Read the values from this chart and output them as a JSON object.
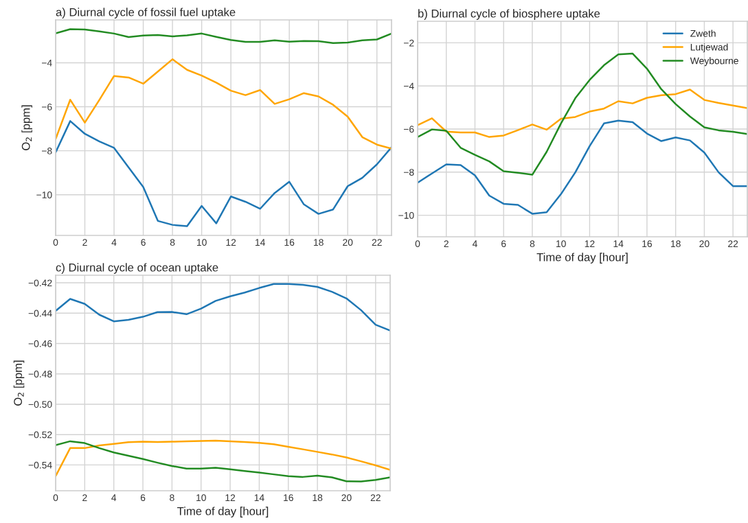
{
  "chart_data": [
    {
      "type": "line",
      "title": "a) Diurnal cycle of fossil fuel uptake",
      "ylabel": "O$_{2}$ [ppm]",
      "x": [
        0,
        1,
        2,
        3,
        4,
        5,
        6,
        7,
        8,
        9,
        10,
        11,
        12,
        13,
        14,
        15,
        16,
        17,
        18,
        19,
        20,
        21,
        22,
        23
      ],
      "xlim": [
        0,
        23
      ],
      "xticks": [
        0,
        2,
        4,
        6,
        8,
        10,
        12,
        14,
        16,
        18,
        20,
        22
      ],
      "ylim": [
        -11.85,
        -2.05
      ],
      "yticks": [
        {
          "value": -10,
          "label": "−10"
        },
        {
          "value": -8,
          "label": "−8"
        },
        {
          "value": -6,
          "label": "−6"
        },
        {
          "value": -4,
          "label": "−4"
        }
      ],
      "grid": true,
      "legend": false,
      "series": [
        {
          "color": "#1f77b4",
          "values": [
            -8.07,
            -6.65,
            -7.23,
            -7.58,
            -7.87,
            -8.76,
            -9.65,
            -11.19,
            -11.37,
            -11.43,
            -10.51,
            -11.3,
            -10.08,
            -10.32,
            -10.64,
            -9.92,
            -9.41,
            -10.44,
            -10.87,
            -10.67,
            -9.61,
            -9.23,
            -8.62,
            -7.84
          ]
        },
        {
          "color": "#ffa500",
          "values": [
            -7.47,
            -5.68,
            -6.72,
            -5.68,
            -4.6,
            -4.67,
            -4.95,
            -4.4,
            -3.84,
            -4.32,
            -4.58,
            -4.9,
            -5.27,
            -5.47,
            -5.24,
            -5.87,
            -5.66,
            -5.38,
            -5.53,
            -5.91,
            -6.45,
            -7.38,
            -7.72,
            -7.9
          ]
        },
        {
          "color": "#228b22",
          "values": [
            -2.66,
            -2.47,
            -2.49,
            -2.57,
            -2.67,
            -2.83,
            -2.76,
            -2.74,
            -2.8,
            -2.75,
            -2.67,
            -2.82,
            -2.96,
            -3.05,
            -3.05,
            -2.98,
            -3.04,
            -3.01,
            -3.02,
            -3.1,
            -3.08,
            -2.98,
            -2.94,
            -2.67
          ]
        }
      ]
    },
    {
      "type": "line",
      "title": "b) Diurnal cycle of biosphere uptake",
      "xlabel": "Time of day [hour]",
      "x": [
        0,
        1,
        2,
        3,
        4,
        5,
        6,
        7,
        8,
        9,
        10,
        11,
        12,
        13,
        14,
        15,
        16,
        17,
        18,
        19,
        20,
        21,
        22,
        23
      ],
      "xlim": [
        0,
        23
      ],
      "xticks": [
        0,
        2,
        4,
        6,
        8,
        10,
        12,
        14,
        16,
        18,
        20,
        22
      ],
      "ylim": [
        -11,
        -1
      ],
      "yticks": [
        {
          "value": -10,
          "label": "−10"
        },
        {
          "value": -8,
          "label": "−8"
        },
        {
          "value": -6,
          "label": "−6"
        },
        {
          "value": -4,
          "label": "−4"
        },
        {
          "value": -2,
          "label": "−2"
        }
      ],
      "grid": true,
      "legend": "top right",
      "series": [
        {
          "name": "Zweth",
          "color": "#1f77b4",
          "values": [
            -8.49,
            -8.06,
            -7.64,
            -7.67,
            -8.15,
            -9.09,
            -9.47,
            -9.52,
            -9.93,
            -9.86,
            -9.02,
            -8.01,
            -6.79,
            -5.74,
            -5.61,
            -5.68,
            -6.21,
            -6.56,
            -6.39,
            -6.53,
            -7.09,
            -8.01,
            -8.65,
            -8.65
          ]
        },
        {
          "name": "Lutjewad",
          "color": "#ffa500",
          "values": [
            -5.82,
            -5.5,
            -6.12,
            -6.16,
            -6.16,
            -6.37,
            -6.3,
            -6.05,
            -5.79,
            -6.03,
            -5.52,
            -5.44,
            -5.19,
            -5.05,
            -4.71,
            -4.81,
            -4.55,
            -4.43,
            -4.38,
            -4.17,
            -4.65,
            -4.79,
            -4.91,
            -5.03
          ]
        },
        {
          "name": "Weybourne",
          "color": "#228b22",
          "values": [
            -6.37,
            -6.02,
            -6.08,
            -6.87,
            -7.2,
            -7.5,
            -7.96,
            -8.03,
            -8.12,
            -7.06,
            -5.74,
            -4.57,
            -3.72,
            -3.04,
            -2.54,
            -2.5,
            -3.2,
            -4.15,
            -4.84,
            -5.42,
            -5.92,
            -6.06,
            -6.13,
            -6.23
          ]
        }
      ]
    },
    {
      "type": "line",
      "title": "c) Diurnal cycle of ocean uptake",
      "xlabel": "Time of day [hour]",
      "ylabel": "O$_{2}$ [ppm]",
      "x": [
        0,
        1,
        2,
        3,
        4,
        5,
        6,
        7,
        8,
        9,
        10,
        11,
        12,
        13,
        14,
        15,
        16,
        17,
        18,
        19,
        20,
        21,
        22,
        23
      ],
      "xlim": [
        0,
        23
      ],
      "xticks": [
        0,
        2,
        4,
        6,
        8,
        10,
        12,
        14,
        16,
        18,
        20,
        22
      ],
      "ylim": [
        -0.557,
        -0.415
      ],
      "yticks": [
        {
          "value": -0.54,
          "label": "−0.54"
        },
        {
          "value": -0.52,
          "label": "−0.52"
        },
        {
          "value": -0.5,
          "label": "−0.50"
        },
        {
          "value": -0.48,
          "label": "−0.48"
        },
        {
          "value": -0.46,
          "label": "−0.46"
        },
        {
          "value": -0.44,
          "label": "−0.44"
        },
        {
          "value": -0.42,
          "label": "−0.42"
        }
      ],
      "grid": true,
      "legend": false,
      "series": [
        {
          "color": "#1f77b4",
          "values": [
            -0.4385,
            -0.4306,
            -0.4339,
            -0.441,
            -0.4454,
            -0.4444,
            -0.4424,
            -0.4393,
            -0.4392,
            -0.4407,
            -0.437,
            -0.4319,
            -0.4289,
            -0.4264,
            -0.4234,
            -0.4208,
            -0.4208,
            -0.4213,
            -0.4227,
            -0.4259,
            -0.4303,
            -0.438,
            -0.4476,
            -0.4514
          ]
        },
        {
          "color": "#ffa500",
          "values": [
            -0.5474,
            -0.5289,
            -0.5289,
            -0.5272,
            -0.5261,
            -0.525,
            -0.5247,
            -0.5249,
            -0.5247,
            -0.5244,
            -0.5242,
            -0.524,
            -0.5244,
            -0.5249,
            -0.5255,
            -0.5264,
            -0.5281,
            -0.5297,
            -0.5314,
            -0.5331,
            -0.5351,
            -0.5376,
            -0.5403,
            -0.5432
          ]
        },
        {
          "color": "#228b22",
          "values": [
            -0.5269,
            -0.5244,
            -0.5256,
            -0.5289,
            -0.5318,
            -0.5339,
            -0.5361,
            -0.5385,
            -0.5407,
            -0.5424,
            -0.5424,
            -0.5418,
            -0.5429,
            -0.544,
            -0.545,
            -0.5462,
            -0.5474,
            -0.5479,
            -0.5471,
            -0.5482,
            -0.5508,
            -0.5509,
            -0.5499,
            -0.5482
          ]
        }
      ]
    }
  ]
}
